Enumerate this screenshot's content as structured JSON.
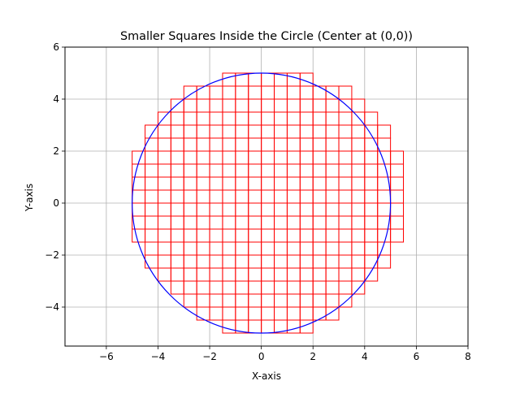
{
  "chart_data": {
    "type": "scatter",
    "title": "Smaller Squares Inside the Circle (Center at (0,0))",
    "xlabel": "X-axis",
    "ylabel": "Y-axis",
    "xlim": [
      -7.6,
      8.0
    ],
    "ylim": [
      -5.5,
      6.0
    ],
    "xticks": [
      -6,
      -4,
      -2,
      0,
      2,
      4,
      6,
      8
    ],
    "xtick_labels": [
      "−6",
      "−4",
      "−2",
      "0",
      "2",
      "4",
      "6",
      "8"
    ],
    "yticks": [
      -4,
      -2,
      0,
      2,
      4,
      6
    ],
    "ytick_labels": [
      "−4",
      "−2",
      "0",
      "2",
      "4",
      "6"
    ],
    "grid": true,
    "circle": {
      "center": [
        0,
        0
      ],
      "radius": 5,
      "color": "#0000ff"
    },
    "squares": {
      "side": 0.5,
      "color": "#ff0000",
      "rows": [
        {
          "y": -5.0,
          "x_min": -1.5,
          "x_max": 1.5
        },
        {
          "y": -4.5,
          "x_min": -2.5,
          "x_max": 2.5
        },
        {
          "y": -4.0,
          "x_min": -3.0,
          "x_max": 3.0
        },
        {
          "y": -3.5,
          "x_min": -3.5,
          "x_max": 3.5
        },
        {
          "y": -3.0,
          "x_min": -4.0,
          "x_max": 4.0
        },
        {
          "y": -2.5,
          "x_min": -4.5,
          "x_max": 4.5
        },
        {
          "y": -2.0,
          "x_min": -4.5,
          "x_max": 4.5
        },
        {
          "y": -1.5,
          "x_min": -5.0,
          "x_max": 5.0
        },
        {
          "y": -1.0,
          "x_min": -5.0,
          "x_max": 5.0
        },
        {
          "y": -0.5,
          "x_min": -5.0,
          "x_max": 5.0
        },
        {
          "y": 0.0,
          "x_min": -5.0,
          "x_max": 5.0
        },
        {
          "y": 0.5,
          "x_min": -5.0,
          "x_max": 5.0
        },
        {
          "y": 1.0,
          "x_min": -5.0,
          "x_max": 5.0
        },
        {
          "y": 1.5,
          "x_min": -5.0,
          "x_max": 5.0
        },
        {
          "y": 2.0,
          "x_min": -4.5,
          "x_max": 4.5
        },
        {
          "y": 2.5,
          "x_min": -4.5,
          "x_max": 4.5
        },
        {
          "y": 3.0,
          "x_min": -4.0,
          "x_max": 4.0
        },
        {
          "y": 3.5,
          "x_min": -3.5,
          "x_max": 3.5
        },
        {
          "y": 4.0,
          "x_min": -3.0,
          "x_max": 3.0
        },
        {
          "y": 4.5,
          "x_min": -1.5,
          "x_max": 1.5
        }
      ]
    }
  }
}
